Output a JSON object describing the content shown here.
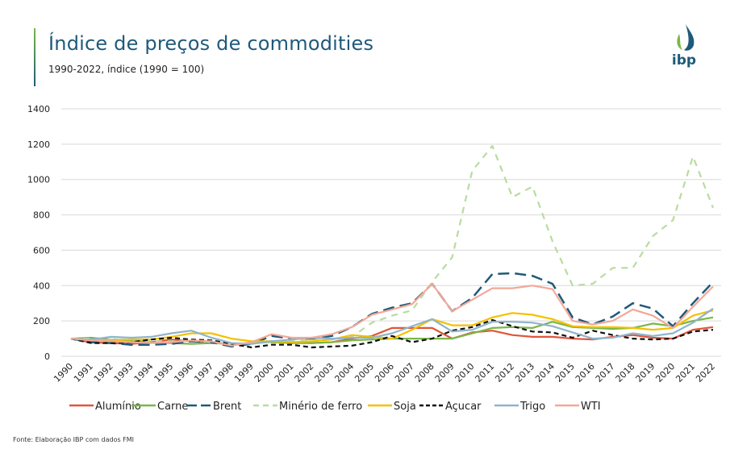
{
  "header": {
    "title": "Índice de preços de commodities",
    "subtitle": "1990-2022, índice (1990 = 100)",
    "logo_text": "ibp"
  },
  "footer": {
    "source": "Fonte: Elaboração IBP com dados FMI"
  },
  "chart_data": {
    "type": "line",
    "title": "Índice de preços de commodities",
    "subtitle": "1990-2022, índice (1990 = 100)",
    "xlabel": "",
    "ylabel": "",
    "ylim": [
      0,
      1400
    ],
    "yticks": [
      0,
      200,
      400,
      600,
      800,
      1000,
      1200,
      1400
    ],
    "grid": true,
    "legend_position": "bottom",
    "x": [
      "1990",
      "1991",
      "1992",
      "1993",
      "1994",
      "1995",
      "1996",
      "1997",
      "1998",
      "1999",
      "2000",
      "2001",
      "2002",
      "2003",
      "2004",
      "2005",
      "2006",
      "2007",
      "2008",
      "2009",
      "2010",
      "2011",
      "2012",
      "2013",
      "2014",
      "2015",
      "2016",
      "2017",
      "2018",
      "2019",
      "2020",
      "2021",
      "2022"
    ],
    "series": [
      {
        "name": "Alumínio",
        "color": "#e0553a",
        "dash": "",
        "values": [
          100,
          78,
          75,
          70,
          80,
          95,
          85,
          80,
          65,
          75,
          85,
          80,
          75,
          80,
          100,
          115,
          160,
          160,
          160,
          100,
          135,
          145,
          120,
          110,
          110,
          100,
          95,
          110,
          120,
          105,
          100,
          150,
          165
        ]
      },
      {
        "name": "Carne",
        "color": "#7ab648",
        "dash": "",
        "values": [
          100,
          105,
          95,
          90,
          80,
          75,
          70,
          75,
          70,
          75,
          80,
          75,
          75,
          80,
          90,
          95,
          100,
          100,
          100,
          100,
          130,
          160,
          165,
          160,
          195,
          165,
          160,
          155,
          160,
          185,
          170,
          200,
          220
        ]
      },
      {
        "name": "Brent",
        "color": "#1e5a7a",
        "dash": "14,7",
        "values": [
          100,
          80,
          75,
          65,
          65,
          70,
          85,
          80,
          55,
          70,
          115,
          100,
          100,
          115,
          165,
          240,
          275,
          300,
          410,
          255,
          330,
          465,
          470,
          455,
          410,
          220,
          180,
          225,
          300,
          270,
          170,
          300,
          420
        ]
      },
      {
        "name": "Minério de ferro",
        "color": "#b8dca0",
        "dash": "8,7",
        "values": [
          100,
          100,
          95,
          95,
          85,
          85,
          90,
          80,
          70,
          75,
          80,
          90,
          90,
          95,
          110,
          190,
          230,
          260,
          420,
          560,
          1050,
          1190,
          900,
          960,
          650,
          400,
          410,
          500,
          500,
          680,
          770,
          1130,
          840
        ]
      },
      {
        "name": "Soja",
        "color": "#f5c000",
        "dash": "",
        "values": [
          100,
          95,
          90,
          95,
          95,
          110,
          130,
          130,
          100,
          85,
          85,
          80,
          85,
          95,
          120,
          110,
          100,
          150,
          210,
          175,
          175,
          220,
          245,
          235,
          210,
          170,
          165,
          165,
          160,
          150,
          160,
          230,
          260
        ]
      },
      {
        "name": "Açucar",
        "color": "#111111",
        "dash": "6,4",
        "values": [
          100,
          75,
          75,
          80,
          95,
          105,
          95,
          90,
          70,
          50,
          65,
          65,
          50,
          55,
          60,
          80,
          115,
          80,
          100,
          145,
          165,
          205,
          170,
          140,
          135,
          105,
          145,
          120,
          100,
          95,
          100,
          140,
          150
        ]
      },
      {
        "name": "Trigo",
        "color": "#8fb4cc",
        "dash": "",
        "values": [
          100,
          95,
          110,
          105,
          110,
          130,
          145,
          105,
          75,
          70,
          85,
          95,
          105,
          100,
          105,
          105,
          130,
          170,
          210,
          140,
          150,
          195,
          195,
          190,
          170,
          135,
          100,
          105,
          130,
          115,
          130,
          190,
          270
        ]
      },
      {
        "name": "WTI",
        "color": "#f2a898",
        "dash": "",
        "values": [
          100,
          90,
          85,
          80,
          75,
          80,
          90,
          85,
          60,
          80,
          125,
          105,
          105,
          125,
          165,
          235,
          265,
          295,
          410,
          255,
          320,
          385,
          385,
          400,
          380,
          200,
          180,
          200,
          265,
          230,
          160,
          280,
          395
        ]
      }
    ]
  }
}
